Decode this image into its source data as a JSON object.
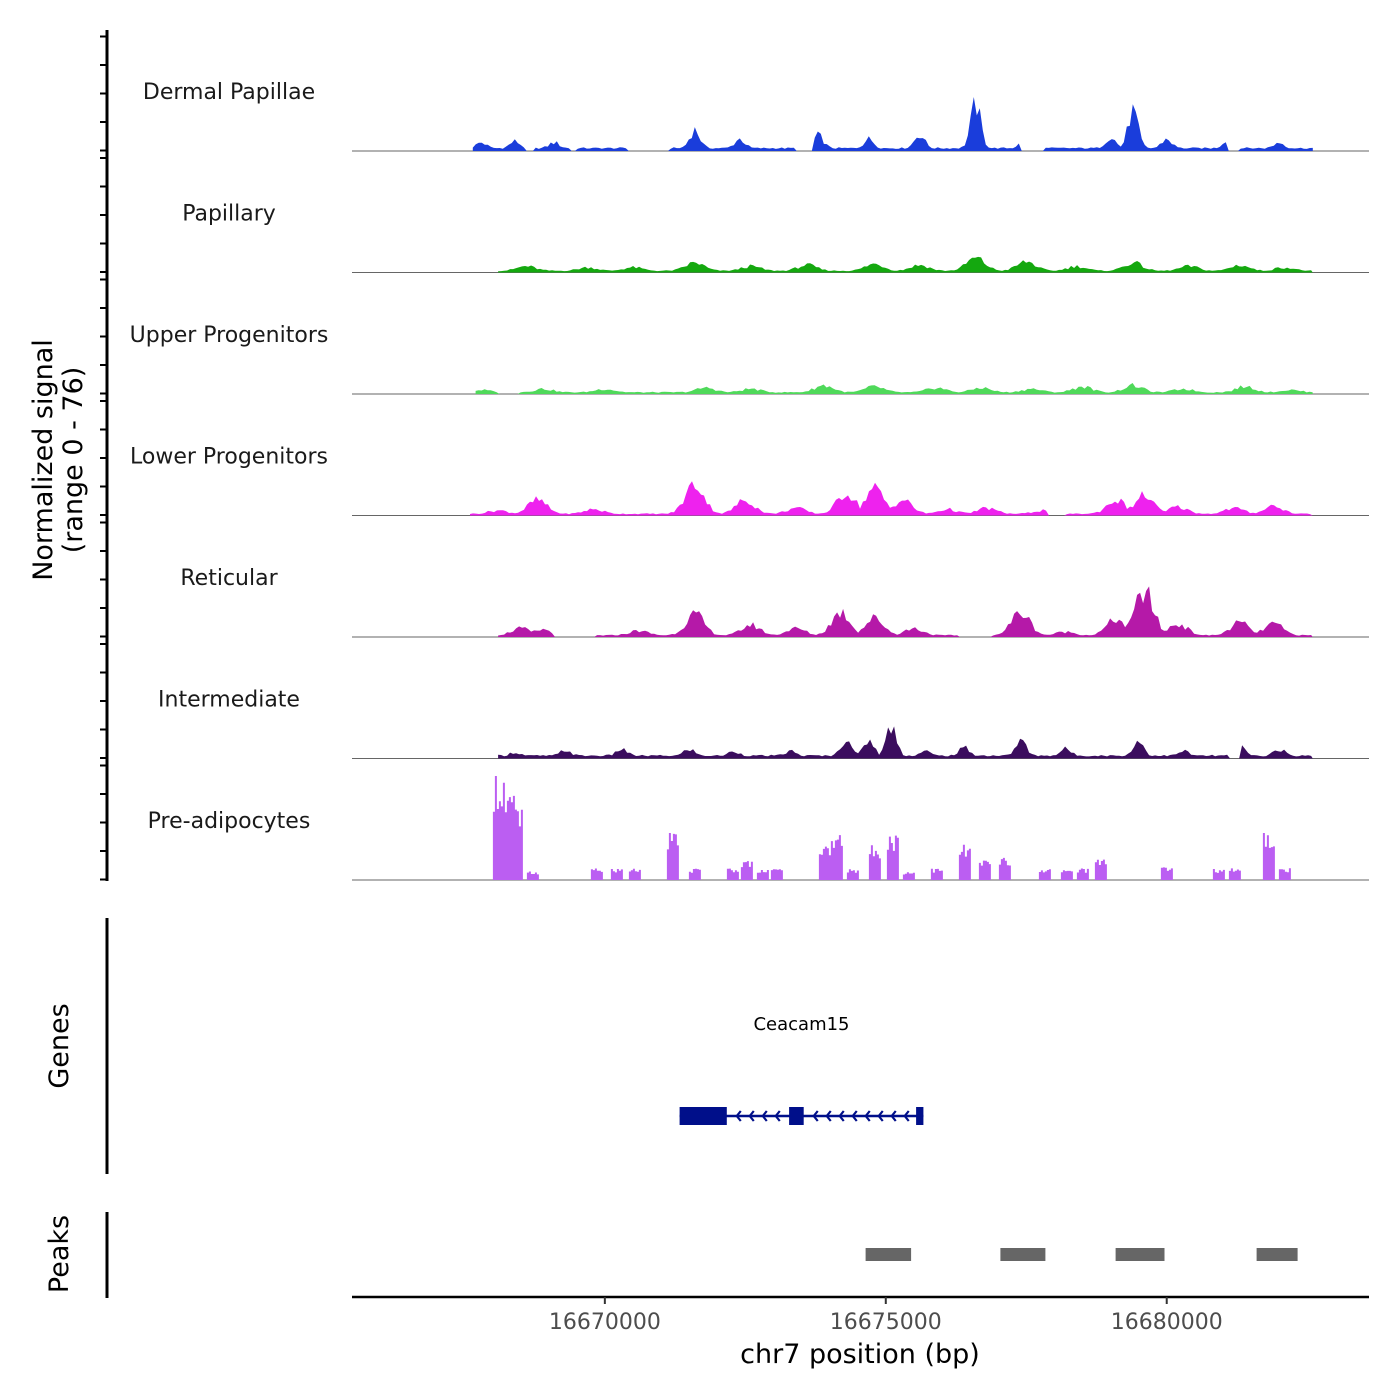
{
  "chart_data": {
    "type": "area",
    "ylabel": "Normalized signal",
    "ylabel_range": "(range 0 - 76)",
    "yrange": [
      0,
      76
    ],
    "xlabel": "chr7 position (bp)",
    "xrange": [
      16665500,
      16683600
    ],
    "xticks": [
      {
        "value": 16670000,
        "label": "16670000"
      },
      {
        "value": 16675000,
        "label": "16675000"
      },
      {
        "value": 16680000,
        "label": "16680000"
      }
    ],
    "tracks": [
      {
        "name": "Dermal Papillae",
        "color": "#1a3ddb",
        "start": 16667650,
        "end": 16682600,
        "style": "spiky",
        "gaps": [
          [
            16668600,
            16668750
          ],
          [
            16669400,
            16669500
          ],
          [
            16670400,
            16671150
          ],
          [
            16673400,
            16673700
          ],
          [
            16677400,
            16677800
          ],
          [
            16681100,
            16681300
          ]
        ],
        "peaks": [
          [
            16667800,
            5
          ],
          [
            16668400,
            6
          ],
          [
            16669100,
            5
          ],
          [
            16671600,
            16
          ],
          [
            16672400,
            8
          ],
          [
            16673800,
            11
          ],
          [
            16674700,
            8
          ],
          [
            16675600,
            12
          ],
          [
            16676600,
            38
          ],
          [
            16677500,
            16
          ],
          [
            16679000,
            10
          ],
          [
            16679400,
            32
          ],
          [
            16680000,
            8
          ],
          [
            16681100,
            9
          ],
          [
            16682000,
            5
          ]
        ]
      },
      {
        "name": "Papillary",
        "color": "#14a80f",
        "start": 16668100,
        "end": 16682600,
        "style": "smooth",
        "gaps": [],
        "peaks": [
          [
            16668600,
            4
          ],
          [
            16669700,
            3
          ],
          [
            16670500,
            3
          ],
          [
            16671600,
            7
          ],
          [
            16672600,
            4
          ],
          [
            16673600,
            5
          ],
          [
            16674800,
            6
          ],
          [
            16675600,
            5
          ],
          [
            16676600,
            11
          ],
          [
            16677500,
            8
          ],
          [
            16678400,
            4
          ],
          [
            16679400,
            7
          ],
          [
            16680400,
            4
          ],
          [
            16681300,
            5
          ],
          [
            16682100,
            3
          ]
        ]
      },
      {
        "name": "Upper Progenitors",
        "color": "#4fd95a",
        "start": 16667700,
        "end": 16682600,
        "style": "smooth",
        "gaps": [
          [
            16668100,
            16668500
          ]
        ],
        "peaks": [
          [
            16667800,
            2
          ],
          [
            16668900,
            3
          ],
          [
            16670000,
            3
          ],
          [
            16671800,
            4
          ],
          [
            16672600,
            3
          ],
          [
            16673900,
            6
          ],
          [
            16674800,
            5
          ],
          [
            16675900,
            4
          ],
          [
            16676700,
            4
          ],
          [
            16677600,
            3
          ],
          [
            16678500,
            5
          ],
          [
            16679400,
            6
          ],
          [
            16680300,
            3
          ],
          [
            16681400,
            5
          ],
          [
            16682200,
            2
          ]
        ]
      },
      {
        "name": "Lower Progenitors",
        "color": "#ee22ee",
        "start": 16667600,
        "end": 16682600,
        "style": "smooth",
        "gaps": [
          [
            16677900,
            16678200
          ]
        ],
        "peaks": [
          [
            16668100,
            3
          ],
          [
            16668800,
            12
          ],
          [
            16669800,
            4
          ],
          [
            16671600,
            26
          ],
          [
            16672500,
            12
          ],
          [
            16673400,
            5
          ],
          [
            16674300,
            18
          ],
          [
            16674800,
            22
          ],
          [
            16675300,
            12
          ],
          [
            16676100,
            4
          ],
          [
            16676800,
            5
          ],
          [
            16677800,
            3
          ],
          [
            16679100,
            12
          ],
          [
            16679600,
            16
          ],
          [
            16680200,
            6
          ],
          [
            16681200,
            5
          ],
          [
            16681900,
            7
          ]
        ]
      },
      {
        "name": "Reticular",
        "color": "#b519a8",
        "start": 16668100,
        "end": 16682600,
        "style": "smooth",
        "gaps": [
          [
            16669100,
            16669850
          ],
          [
            16676300,
            16676900
          ]
        ],
        "peaks": [
          [
            16668500,
            6
          ],
          [
            16668900,
            5
          ],
          [
            16670600,
            4
          ],
          [
            16671600,
            18
          ],
          [
            16672600,
            9
          ],
          [
            16673400,
            6
          ],
          [
            16674200,
            20
          ],
          [
            16674800,
            15
          ],
          [
            16675500,
            6
          ],
          [
            16677400,
            20
          ],
          [
            16678200,
            3
          ],
          [
            16679100,
            14
          ],
          [
            16679600,
            38
          ],
          [
            16680200,
            10
          ],
          [
            16681300,
            11
          ],
          [
            16681900,
            10
          ]
        ]
      },
      {
        "name": "Intermediate",
        "color": "#3b0d5e",
        "start": 16668100,
        "end": 16682600,
        "style": "spiky",
        "gaps": [
          [
            16681100,
            16681300
          ]
        ],
        "peaks": [
          [
            16668400,
            3
          ],
          [
            16669300,
            5
          ],
          [
            16670300,
            6
          ],
          [
            16671500,
            6
          ],
          [
            16672300,
            4
          ],
          [
            16673300,
            4
          ],
          [
            16674300,
            16
          ],
          [
            16674700,
            14
          ],
          [
            16675100,
            26
          ],
          [
            16675700,
            4
          ],
          [
            16676400,
            7
          ],
          [
            16677400,
            14
          ],
          [
            16678200,
            6
          ],
          [
            16679500,
            13
          ],
          [
            16680300,
            4
          ],
          [
            16681300,
            8
          ],
          [
            16682000,
            6
          ]
        ]
      },
      {
        "name": "Pre-adipocytes",
        "color": "#bb5ef2",
        "start": 16667900,
        "end": 16682600,
        "style": "blocky",
        "gaps": [],
        "peaks": [
          [
            16668100,
            76
          ],
          [
            16668300,
            60
          ],
          [
            16668400,
            50
          ],
          [
            16668700,
            6
          ],
          [
            16669850,
            8
          ],
          [
            16670200,
            8
          ],
          [
            16670500,
            8
          ],
          [
            16671200,
            32
          ],
          [
            16671600,
            8
          ],
          [
            16672250,
            8
          ],
          [
            16672500,
            14
          ],
          [
            16672800,
            8
          ],
          [
            16673050,
            8
          ],
          [
            16673900,
            24
          ],
          [
            16674100,
            32
          ],
          [
            16674400,
            8
          ],
          [
            16674800,
            24
          ],
          [
            16675100,
            32
          ],
          [
            16675400,
            6
          ],
          [
            16675900,
            8
          ],
          [
            16676400,
            24
          ],
          [
            16676750,
            14
          ],
          [
            16677100,
            16
          ],
          [
            16677800,
            8
          ],
          [
            16678200,
            8
          ],
          [
            16678500,
            8
          ],
          [
            16678800,
            16
          ],
          [
            16680000,
            10
          ],
          [
            16680900,
            8
          ],
          [
            16681200,
            8
          ],
          [
            16681800,
            32
          ],
          [
            16682100,
            8
          ]
        ]
      }
    ],
    "genes": {
      "label": "Genes",
      "items": [
        {
          "name": "Ceacam15",
          "start": 16671330,
          "end": 16675670,
          "strand": "-",
          "color": "#000f8a",
          "exons": [
            [
              16671330,
              16672170
            ],
            [
              16673280,
              16673540
            ],
            [
              16675540,
              16675670
            ]
          ]
        }
      ]
    },
    "peaks": {
      "label": "Peaks",
      "color": "#666666",
      "regions": [
        [
          16674640,
          16675450
        ],
        [
          16677040,
          16677840
        ],
        [
          16679090,
          16679960
        ],
        [
          16681600,
          16682330
        ]
      ]
    }
  }
}
